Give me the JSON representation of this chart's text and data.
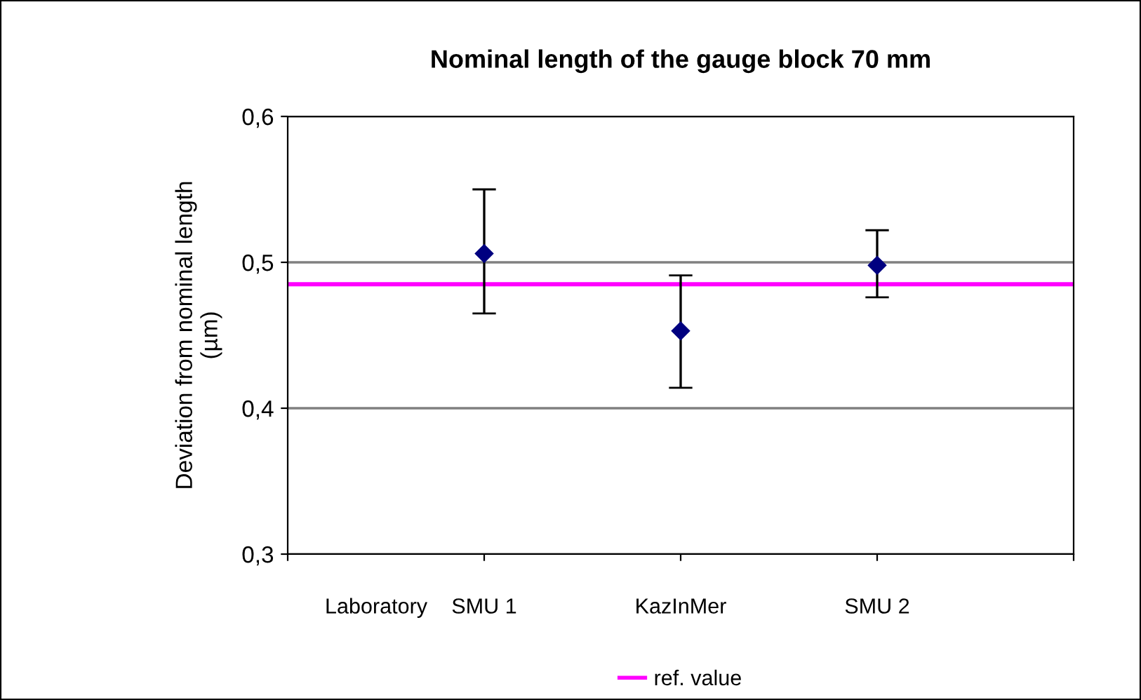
{
  "chart_data": {
    "type": "scatter",
    "title": "Nominal length of the gauge block 70 mm",
    "xlabel": "Laboratory",
    "ylabel": "Deviation from nominal length\n(µm)",
    "categories": [
      null,
      "SMU 1",
      "KazInMer",
      "SMU 2",
      null
    ],
    "series": [
      {
        "color": "#000080",
        "values": [
          null,
          0.506,
          0.453,
          0.498,
          null
        ],
        "errors": [
          null,
          [
            0.465,
            0.55
          ],
          [
            0.414,
            0.491
          ],
          [
            0.476,
            0.522
          ],
          null
        ]
      }
    ],
    "ref_lines": [
      {
        "axis": "y",
        "value": 0.485,
        "label": "ref. value",
        "color": "#ff00ff"
      }
    ],
    "ylim": [
      0.3,
      0.6
    ],
    "yticks": [
      {
        "value": 0.3,
        "label": "0,3"
      },
      {
        "value": 0.4,
        "label": "0,4"
      },
      {
        "value": 0.5,
        "label": "0,5"
      },
      {
        "value": 0.6,
        "label": "0,6"
      }
    ],
    "grid": "y",
    "legend": "bottom",
    "marker": "diamond"
  }
}
